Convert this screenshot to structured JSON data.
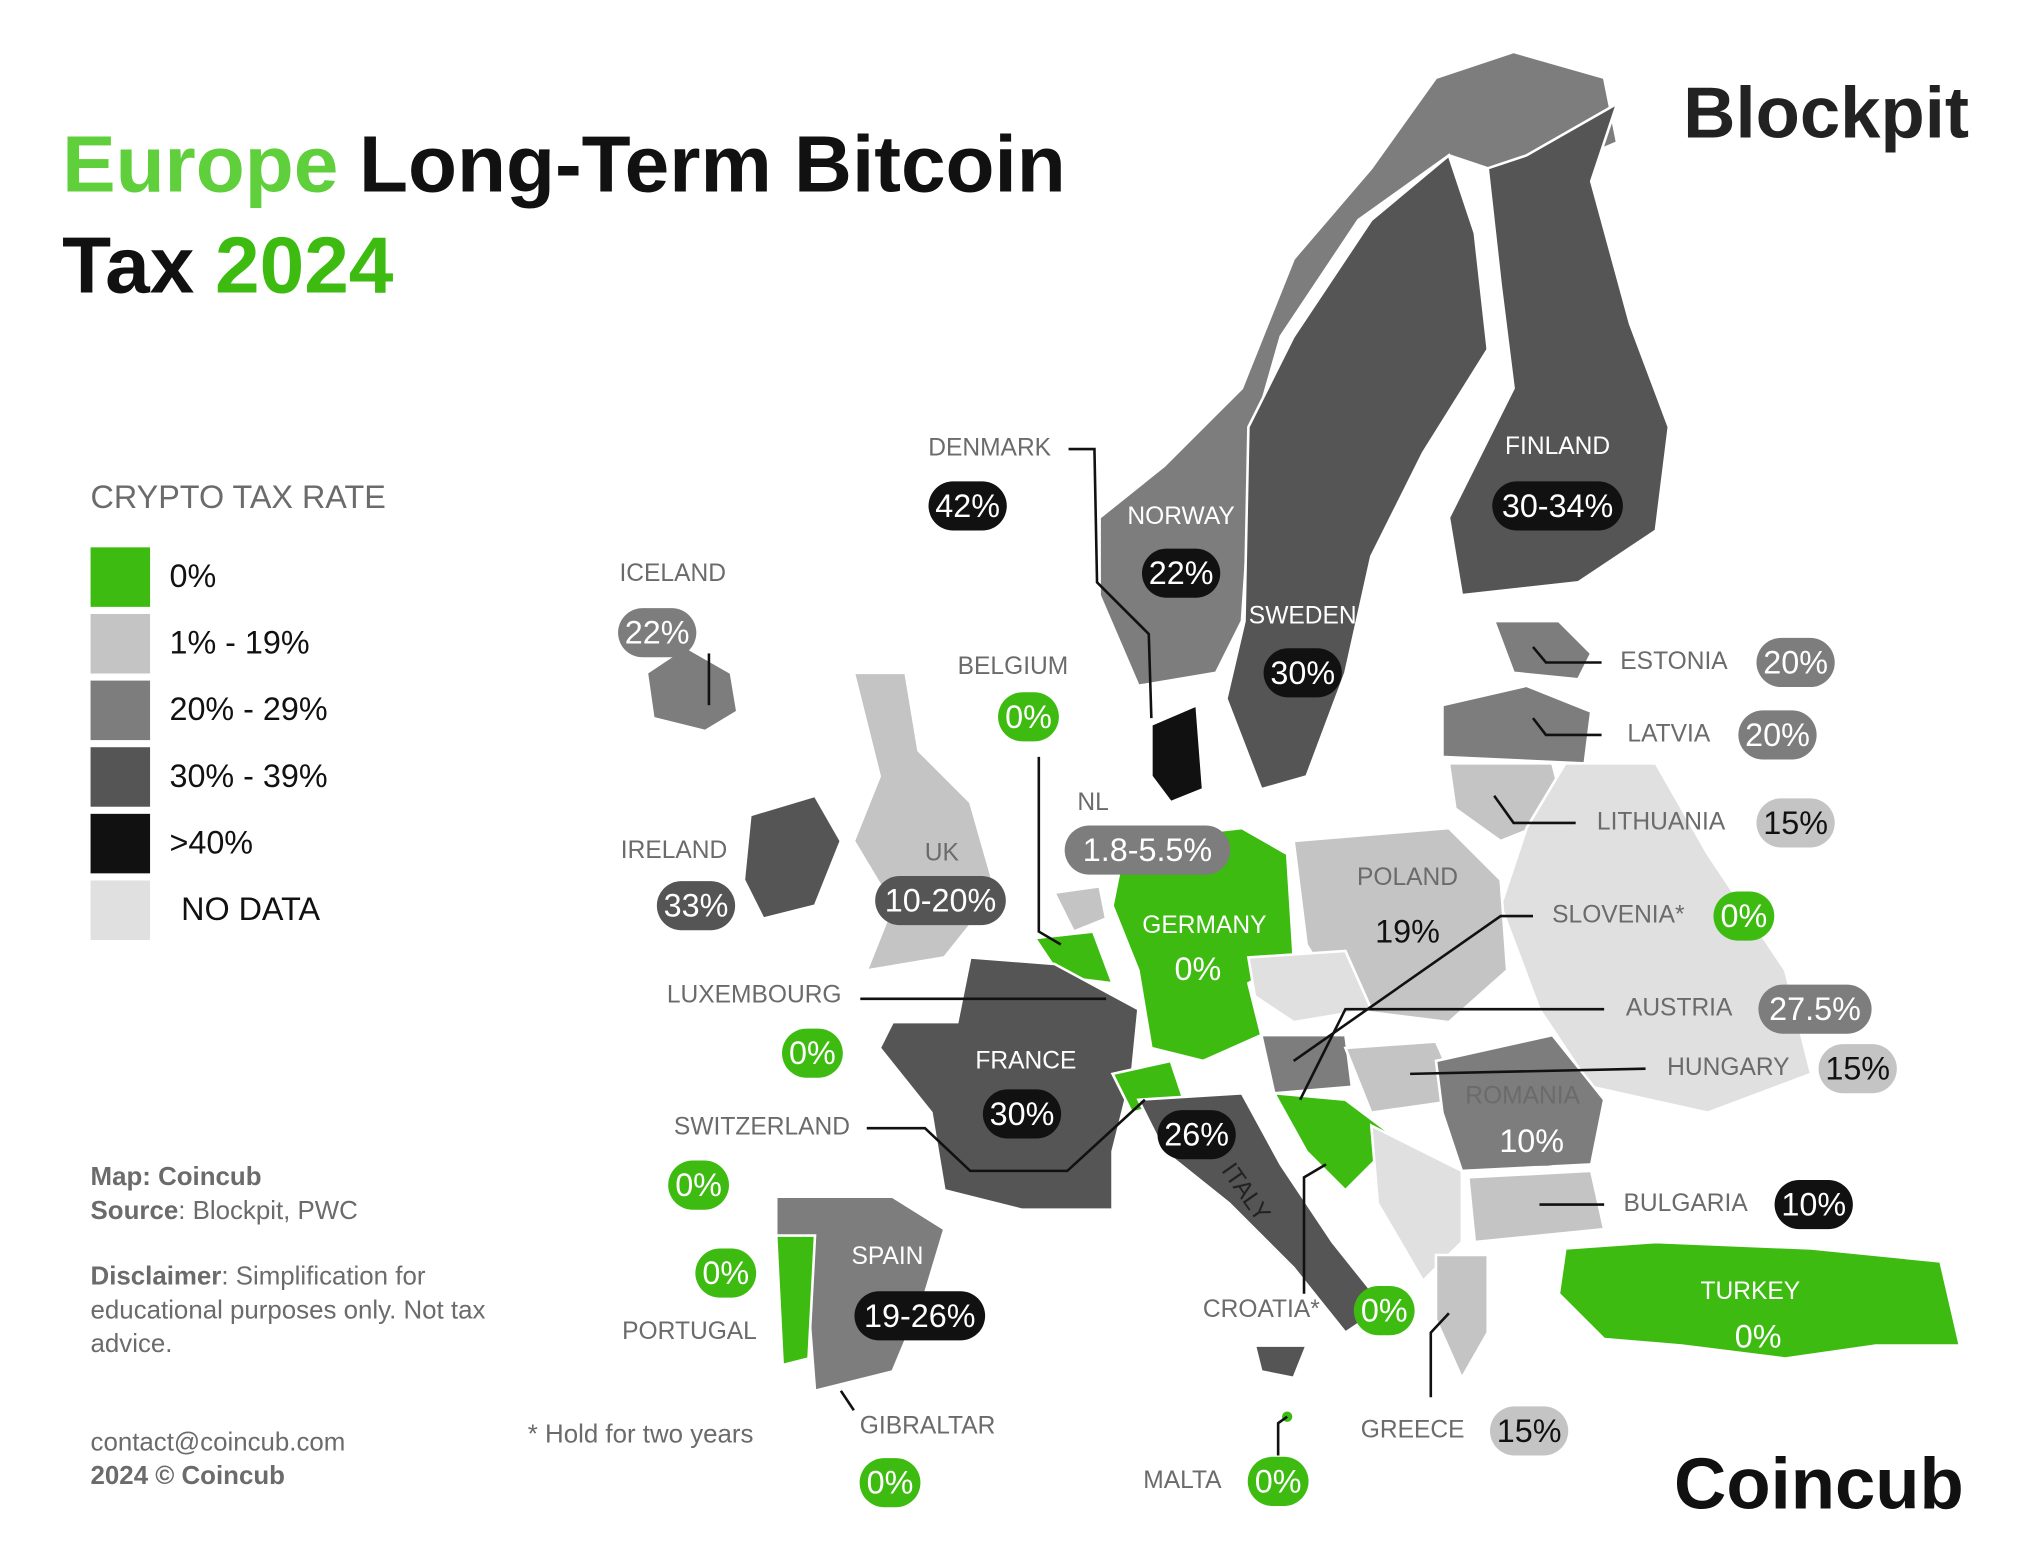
{
  "header": {
    "title_part1": "Europe",
    "title_part2": "Long-Term Bitcoin",
    "title_part3": "Tax",
    "title_part4": "2024",
    "brand": "Blockpit"
  },
  "legend": {
    "title": "CRYPTO TAX RATE",
    "items": [
      {
        "label": "0%",
        "color": "#3dbb10"
      },
      {
        "label": "1% - 19%",
        "color": "#c4c4c4"
      },
      {
        "label": "20% - 29%",
        "color": "#7d7d7d"
      },
      {
        "label": "30% - 39%",
        "color": "#555555"
      },
      {
        "label": ">40%",
        "color": "#111111"
      },
      {
        "label": "NO DATA",
        "color": "#e0e0e0"
      }
    ]
  },
  "countries": [
    {
      "name": "DENMARK",
      "rate": "42%"
    },
    {
      "name": "NORWAY",
      "rate": "22%"
    },
    {
      "name": "FINLAND",
      "rate": "30-34%"
    },
    {
      "name": "ICELAND",
      "rate": "22%"
    },
    {
      "name": "SWEDEN",
      "rate": "30%"
    },
    {
      "name": "BELGIUM",
      "rate": "0%"
    },
    {
      "name": "ESTONIA",
      "rate": "20%"
    },
    {
      "name": "LATVIA",
      "rate": "20%"
    },
    {
      "name": "NL",
      "rate": "1.8-5.5%"
    },
    {
      "name": "LITHUANIA",
      "rate": "15%"
    },
    {
      "name": "IRELAND",
      "rate": "33%"
    },
    {
      "name": "UK",
      "rate": "10-20%"
    },
    {
      "name": "POLAND",
      "rate": "19%"
    },
    {
      "name": "GERMANY",
      "rate": "0%"
    },
    {
      "name": "SLOVENIA*",
      "rate": "0%"
    },
    {
      "name": "LUXEMBOURG",
      "rate": "0%"
    },
    {
      "name": "AUSTRIA",
      "rate": "27.5%"
    },
    {
      "name": "FRANCE",
      "rate": "30%"
    },
    {
      "name": "HUNGARY",
      "rate": "15%"
    },
    {
      "name": "ROMANIA",
      "rate": "10%"
    },
    {
      "name": "SWITZERLAND",
      "rate": "0%"
    },
    {
      "name": "BULGARIA",
      "rate": "10%"
    },
    {
      "name": "SPAIN",
      "rate": "19-26%"
    },
    {
      "name": "PORTUGAL",
      "rate": "0%"
    },
    {
      "name": "TURKEY",
      "rate": "0%"
    },
    {
      "name": "CROATIA*",
      "rate": "0%"
    },
    {
      "name": "GIBRALTAR",
      "rate": "0%"
    },
    {
      "name": "GREECE",
      "rate": "15%"
    },
    {
      "name": "MALTA",
      "rate": "0%"
    }
  ],
  "italy_rate": "26%",
  "italy_label": "ITALY",
  "footer": {
    "map_label": "Map:",
    "map_value": "Coincub",
    "source_label": "Source",
    "source_value": ": Blockpit, PWC",
    "disclaimer_label": "Disclaimer",
    "disclaimer_lines": [
      ": Simplification for",
      "educational purposes only. Not tax",
      "advice."
    ],
    "footnote": "* Hold for two years",
    "contact": "contact@coincub.com",
    "copyright": "2024 © Coincub",
    "brand": "Coincub"
  }
}
